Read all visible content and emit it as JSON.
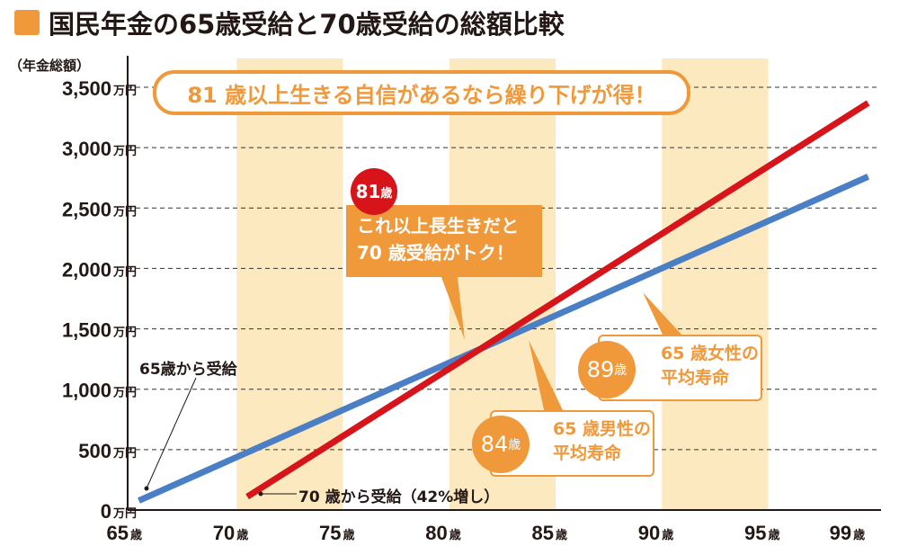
{
  "title": "国民年金の65歳受給と70歳受給の総額比較",
  "banner": "81 歳以上生きる自信があるなら繰り下げが得！",
  "breakeven": {
    "age": "81",
    "unit": "歳",
    "text1": "これ以上長生きだと",
    "text2": "70 歳受給がトク！"
  },
  "male": {
    "age": "84",
    "unit": "歳",
    "text1": "65 歳男性の",
    "text2": "平均寿命"
  },
  "female": {
    "age": "89",
    "unit": "歳",
    "text1": "65 歳女性の",
    "text2": "平均寿命"
  },
  "chart_data": {
    "type": "line",
    "title": "国民年金の65歳受給と70歳受給の総額比較",
    "ylabel": "（年金総額）",
    "ylim": [
      0,
      3500
    ],
    "xlim": [
      65,
      99
    ],
    "yticks": [
      {
        "v": 0,
        "label": "0",
        "unit": "万円"
      },
      {
        "v": 500,
        "label": "500",
        "unit": "万円"
      },
      {
        "v": 1000,
        "label": "1,000",
        "unit": "万円"
      },
      {
        "v": 1500,
        "label": "1,500",
        "unit": "万円"
      },
      {
        "v": 2000,
        "label": "2,000",
        "unit": "万円"
      },
      {
        "v": 2500,
        "label": "2,500",
        "unit": "万円"
      },
      {
        "v": 3000,
        "label": "3,000",
        "unit": "万円"
      },
      {
        "v": 3500,
        "label": "3,500",
        "unit": "万円"
      }
    ],
    "xticks": [
      {
        "v": 65,
        "label": "65",
        "unit": "歳"
      },
      {
        "v": 70,
        "label": "70",
        "unit": "歳"
      },
      {
        "v": 75,
        "label": "75",
        "unit": "歳"
      },
      {
        "v": 80,
        "label": "80",
        "unit": "歳"
      },
      {
        "v": 85,
        "label": "85",
        "unit": "歳"
      },
      {
        "v": 90,
        "label": "90",
        "unit": "歳"
      },
      {
        "v": 95,
        "label": "95",
        "unit": "歳"
      },
      {
        "v": 99,
        "label": "99",
        "unit": "歳"
      }
    ],
    "bands": [
      [
        70,
        75
      ],
      [
        80,
        85
      ],
      [
        90,
        95
      ]
    ],
    "grid": true,
    "series": [
      {
        "name": "65歳から受給",
        "color": "#4a7fc5",
        "points": [
          [
            65.4,
            78
          ],
          [
            99.7,
            2760
          ]
        ]
      },
      {
        "name": "70 歳から受給（42%増し）",
        "color": "#d7141a",
        "points": [
          [
            70.5,
            110
          ],
          [
            99.7,
            3370
          ]
        ]
      }
    ]
  }
}
